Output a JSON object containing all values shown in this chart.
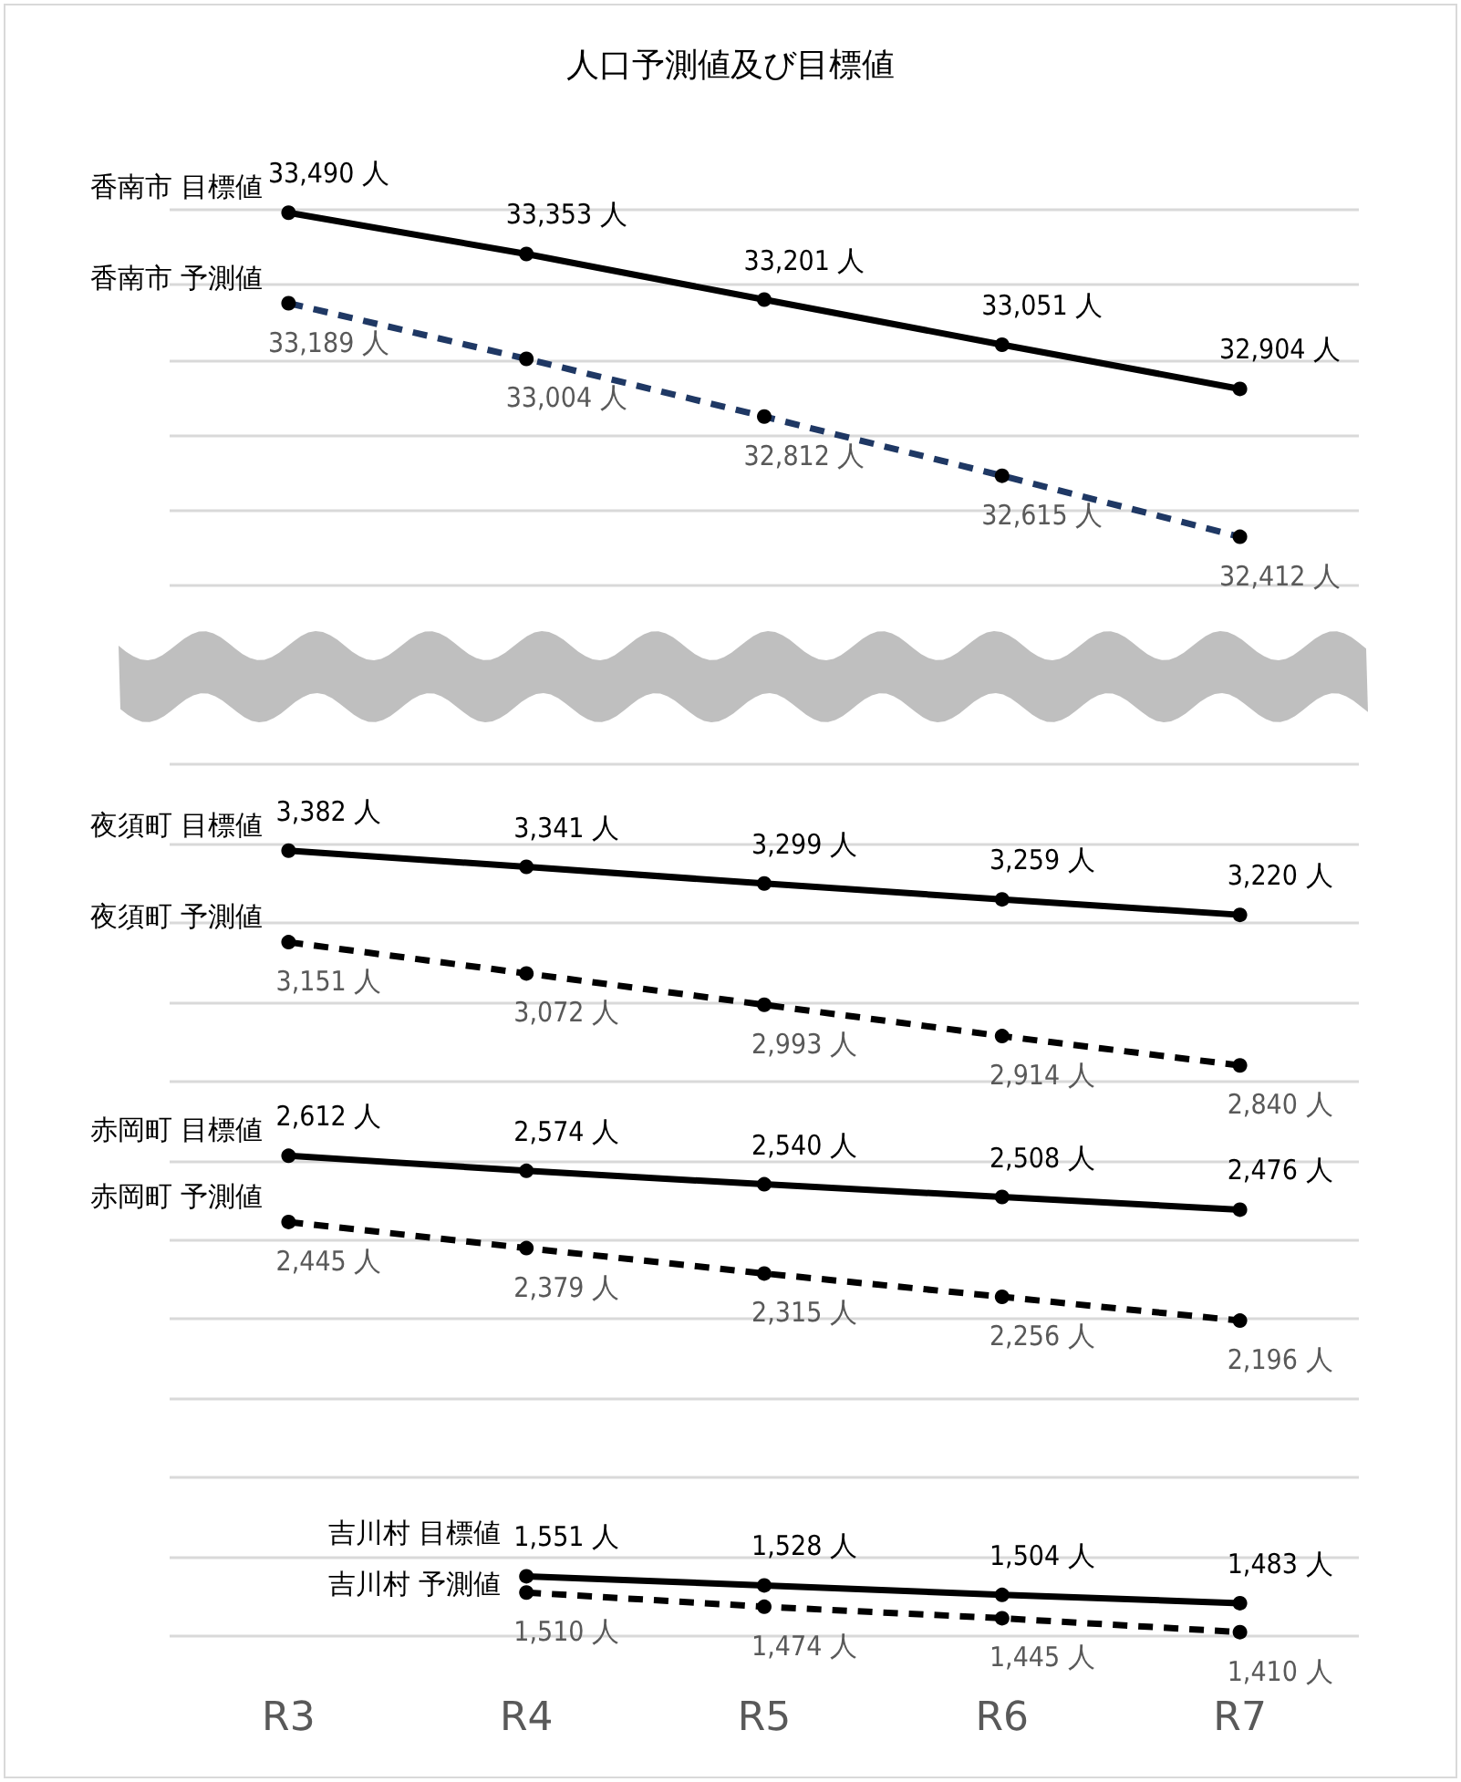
{
  "chart_data": [
    {
      "type": "line",
      "title": "人口予測値及び目標値",
      "categories": [
        null,
        null,
        null,
        null,
        null
      ],
      "series": [
        {
          "name": "香南市 目標値",
          "color": "#000000",
          "line_style": "solid",
          "values": [
            33490,
            33353,
            33201,
            33051,
            32904
          ],
          "value_labels": [
            "33,490 人",
            "33,353 人",
            "33,201 人",
            "33,051 人",
            "32,904 人"
          ]
        },
        {
          "name": "香南市 予測値",
          "color": "#1f3864",
          "line_style": "dashed",
          "values": [
            33189,
            33004,
            32812,
            32615,
            32412
          ],
          "value_labels": [
            "33,189 人",
            "33,004 人",
            "32,812 人",
            "32,615 人",
            "32,412 人"
          ]
        }
      ],
      "ylim": [
        32250,
        33500
      ],
      "yticks": [
        {
          "value": 32250,
          "label": null
        },
        {
          "value": 32500,
          "label": null
        },
        {
          "value": 32750,
          "label": null
        },
        {
          "value": 33000,
          "label": null
        },
        {
          "value": 33250,
          "label": null
        },
        {
          "value": 33500,
          "label": null
        }
      ],
      "grid": "y",
      "marker": "circle",
      "tick_labels": false
    },
    {
      "type": "line",
      "categories": [
        "R3",
        "R4",
        "R5",
        "R6",
        "R7"
      ],
      "series": [
        {
          "name": "夜須町 目標値",
          "color": "#000000",
          "line_style": "solid",
          "values": [
            3382,
            3341,
            3299,
            3259,
            3220
          ],
          "value_labels": [
            "3,382 人",
            "3,341 人",
            "3,299 人",
            "3,259 人",
            "3,220 人"
          ]
        },
        {
          "name": "夜須町 予測値",
          "color": "#000000",
          "line_style": "dashed",
          "values": [
            3151,
            3072,
            2993,
            2914,
            2840
          ],
          "value_labels": [
            "3,151 人",
            "3,072 人",
            "2,993 人",
            "2,914 人",
            "2,840 人"
          ]
        },
        {
          "name": "赤岡町 目標値",
          "color": "#000000",
          "line_style": "solid",
          "values": [
            2612,
            2574,
            2540,
            2508,
            2476
          ],
          "value_labels": [
            "2,612 人",
            "2,574 人",
            "2,540 人",
            "2,508 人",
            "2,476 人"
          ]
        },
        {
          "name": "赤岡町 予測値",
          "color": "#000000",
          "line_style": "dashed",
          "values": [
            2445,
            2379,
            2315,
            2256,
            2196
          ],
          "value_labels": [
            "2,445 人",
            "2,379 人",
            "2,315 人",
            "2,256 人",
            "2,196 人"
          ]
        },
        {
          "name": "吉川村 目標値",
          "color": "#000000",
          "line_style": "solid",
          "values": [
            null,
            1551,
            1528,
            1504,
            1483
          ],
          "value_labels": [
            null,
            "1,551 人",
            "1,528 人",
            "1,504 人",
            "1,483 人"
          ]
        },
        {
          "name": "吉川村 予測値",
          "color": "#000000",
          "line_style": "dashed",
          "values": [
            null,
            1510,
            1474,
            1445,
            1410
          ],
          "value_labels": [
            null,
            "1,510 人",
            "1,474 人",
            "1,445 人",
            "1,410 人"
          ]
        }
      ],
      "ylim": [
        1400,
        3600
      ],
      "yticks": [
        {
          "value": 1400,
          "label": null
        },
        {
          "value": 1600,
          "label": null
        },
        {
          "value": 1800,
          "label": null
        },
        {
          "value": 2000,
          "label": null
        },
        {
          "value": 2200,
          "label": null
        },
        {
          "value": 2400,
          "label": null
        },
        {
          "value": 2600,
          "label": null
        },
        {
          "value": 2800,
          "label": null
        },
        {
          "value": 3000,
          "label": null
        },
        {
          "value": 3200,
          "label": null
        },
        {
          "value": 3400,
          "label": null
        },
        {
          "value": 3600,
          "label": null
        }
      ],
      "grid": "y",
      "marker": "circle",
      "tick_labels": "x"
    }
  ]
}
